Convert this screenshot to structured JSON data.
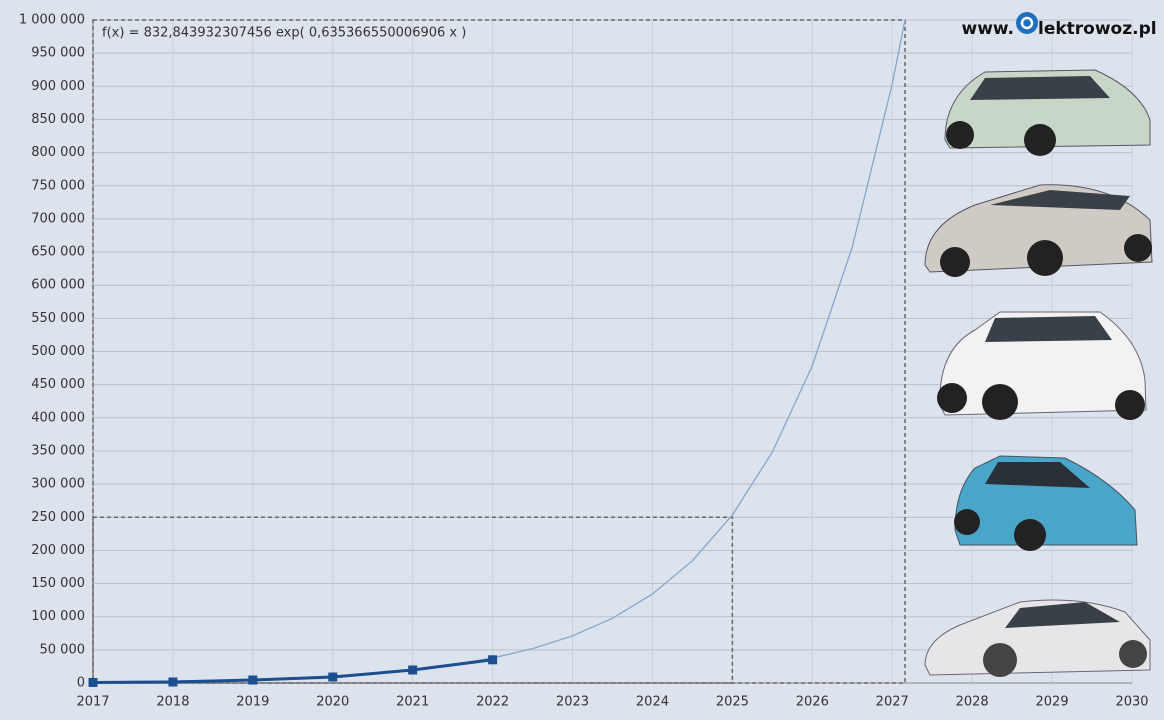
{
  "chart_data": {
    "type": "line",
    "annotation": "f(x) = 832,843932307456 exp( 0,635366550006906 x )",
    "watermark_prefix": "www.",
    "watermark_suffix": "lektrowoz.pl",
    "xlim": [
      2017,
      2030
    ],
    "xticks": [
      2017,
      2018,
      2019,
      2020,
      2021,
      2022,
      2023,
      2024,
      2025,
      2026,
      2027,
      2028,
      2029,
      2030
    ],
    "ylim": [
      0,
      1000000
    ],
    "yticks": [
      {
        "value": 0,
        "label": "0"
      },
      {
        "value": 50000,
        "label": "50 000"
      },
      {
        "value": 100000,
        "label": "100 000"
      },
      {
        "value": 150000,
        "label": "150 000"
      },
      {
        "value": 200000,
        "label": "200 000"
      },
      {
        "value": 250000,
        "label": "250 000"
      },
      {
        "value": 300000,
        "label": "300 000"
      },
      {
        "value": 350000,
        "label": "350 000"
      },
      {
        "value": 400000,
        "label": "400 000"
      },
      {
        "value": 450000,
        "label": "450 000"
      },
      {
        "value": 500000,
        "label": "500 000"
      },
      {
        "value": 550000,
        "label": "550 000"
      },
      {
        "value": 600000,
        "label": "600 000"
      },
      {
        "value": 650000,
        "label": "650 000"
      },
      {
        "value": 700000,
        "label": "700 000"
      },
      {
        "value": 750000,
        "label": "750 000"
      },
      {
        "value": 800000,
        "label": "800 000"
      },
      {
        "value": 850000,
        "label": "850 000"
      },
      {
        "value": 900000,
        "label": "900 000"
      },
      {
        "value": 950000,
        "label": "950 000"
      },
      {
        "value": 1000000,
        "label": "1 000 000"
      }
    ],
    "grid": true,
    "series": [
      {
        "color": "#1b4f8f",
        "x": [
          2017,
          2018,
          2019,
          2020,
          2021,
          2022
        ],
        "values": [
          800,
          1500,
          4500,
          9000,
          19600,
          35000
        ],
        "markers": true
      },
      {
        "color": "#86a6cc",
        "x": [
          2017,
          2017.5,
          2018,
          2018.5,
          2019,
          2019.5,
          2020,
          2020.5,
          2021,
          2021.5,
          2022,
          2022.5,
          2023,
          2023.5,
          2024,
          2024.5,
          2025,
          2025.5,
          2026,
          2026.5,
          2027,
          2027.16
        ],
        "values": [
          1572,
          2160,
          2968,
          4078,
          5602,
          7698,
          10577,
          14533,
          19965,
          27428,
          37686,
          51786,
          71140,
          97745,
          134266,
          184484,
          253450,
          348270,
          478530,
          657540,
          903380,
          1000000
        ],
        "markers": false
      }
    ],
    "guides": [
      {
        "x": 2025,
        "y": 250000
      },
      {
        "x": 2027.16,
        "y": 1000000
      }
    ]
  }
}
